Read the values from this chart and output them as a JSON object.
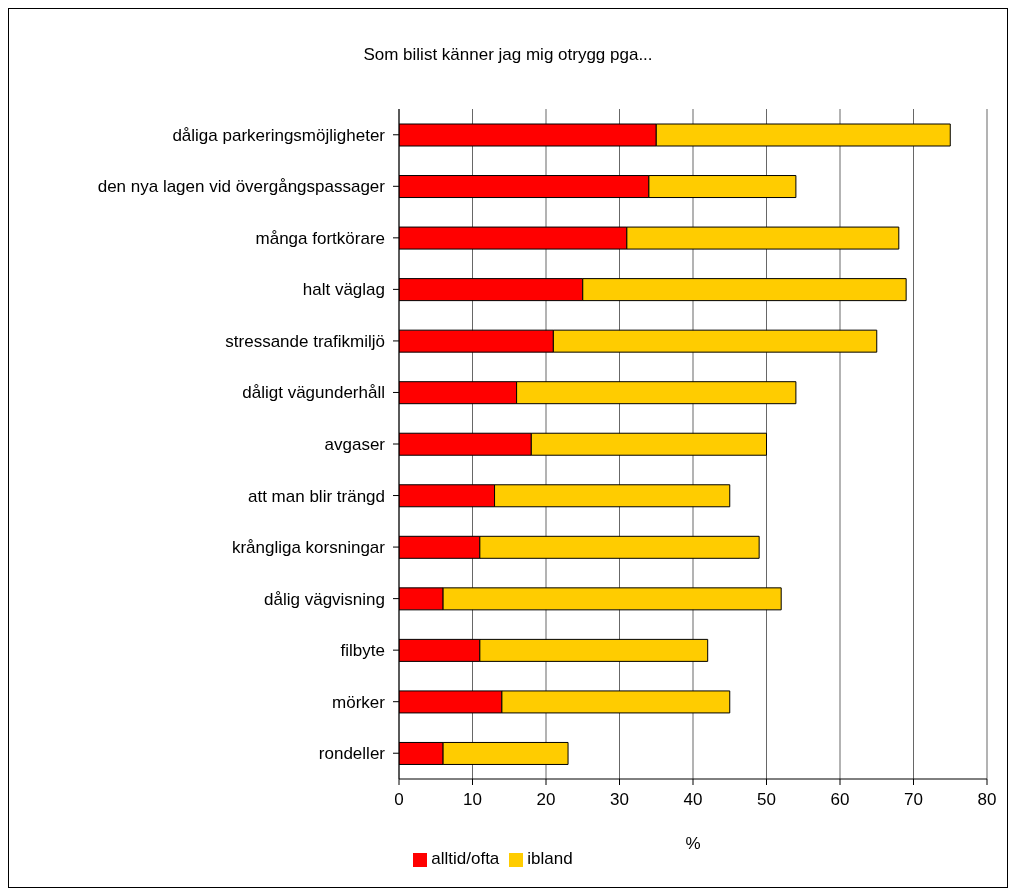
{
  "chart_data": {
    "type": "bar",
    "orientation": "horizontal",
    "stacked": true,
    "title": "Som bilist känner jag mig otrygg pga...",
    "xlabel": "%",
    "categories": [
      "dåliga parkeringsmöjligheter",
      "den nya lagen vid övergångspassager",
      "många fortkörare",
      "halt väglag",
      "stressande trafikmiljö",
      "dåligt vägunderhåll",
      "avgaser",
      "att man blir trängd",
      "krångliga korsningar",
      "dålig vägvisning",
      "filbyte",
      "mörker",
      "rondeller"
    ],
    "series": [
      {
        "name": "alltid/ofta",
        "color": "#ff0000",
        "values": [
          35,
          34,
          31,
          25,
          21,
          16,
          18,
          13,
          11,
          6,
          11,
          14,
          6
        ]
      },
      {
        "name": "ibland",
        "color": "#ffcc00",
        "values": [
          40,
          20,
          37,
          44,
          44,
          38,
          32,
          32,
          38,
          46,
          31,
          31,
          17
        ]
      }
    ],
    "xlim": [
      0,
      80
    ],
    "xticks": [
      0,
      10,
      20,
      30,
      40,
      50,
      60,
      70,
      80
    ],
    "grid": "x",
    "legend": "bottom"
  }
}
